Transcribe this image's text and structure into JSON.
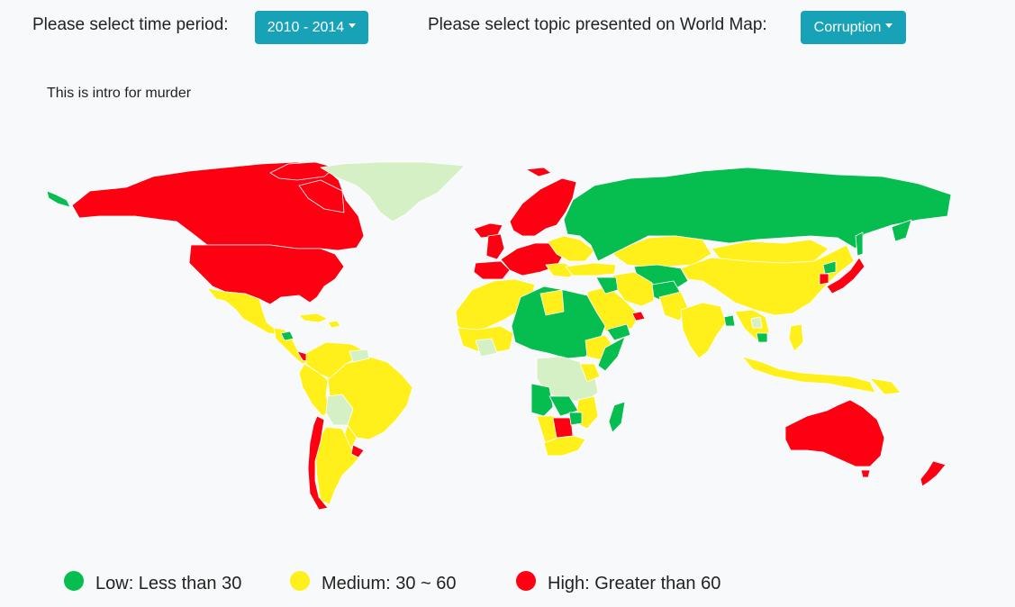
{
  "controls": {
    "time_label": "Please select time period:",
    "time_value": "2010 - 2014",
    "topic_label": "Please select topic presented on World Map:",
    "topic_value": "Corruption"
  },
  "intro": "This is intro for murder",
  "colors": {
    "low": "#06bd4f",
    "medium": "#fff01b",
    "high": "#fd0012",
    "no_data": "#d4f0c4",
    "button": "#17a2b8",
    "border": "#ffffff"
  },
  "legend": [
    {
      "key": "low",
      "label": "Low: Less than 30"
    },
    {
      "key": "medium",
      "label": "Medium: 30 ~ 60"
    },
    {
      "key": "high",
      "label": "High: Greater than 60"
    }
  ]
}
